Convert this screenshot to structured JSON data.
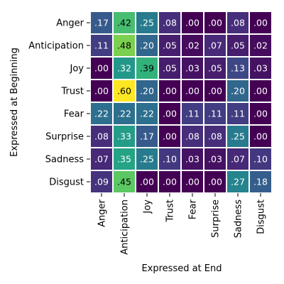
{
  "chart_data": {
    "type": "heatmap",
    "title": "",
    "xlabel": "Expressed at End",
    "ylabel": "Expressed at Beginning",
    "x_categories": [
      "Anger",
      "Anticipation",
      "Joy",
      "Trust",
      "Fear",
      "Surprise",
      "Sadness",
      "Disgust"
    ],
    "y_categories": [
      "Anger",
      "Anticipation",
      "Joy",
      "Trust",
      "Fear",
      "Surprise",
      "Sadness",
      "Disgust"
    ],
    "values": [
      [
        0.17,
        0.42,
        0.25,
        0.08,
        0.0,
        0.0,
        0.08,
        0.0
      ],
      [
        0.11,
        0.48,
        0.2,
        0.05,
        0.02,
        0.07,
        0.05,
        0.02
      ],
      [
        0.0,
        0.32,
        0.39,
        0.05,
        0.03,
        0.05,
        0.13,
        0.03
      ],
      [
        0.0,
        0.6,
        0.2,
        0.0,
        0.0,
        0.0,
        0.2,
        0.0
      ],
      [
        0.22,
        0.22,
        0.22,
        0.0,
        0.11,
        0.11,
        0.11,
        0.0
      ],
      [
        0.08,
        0.33,
        0.17,
        0.0,
        0.08,
        0.08,
        0.25,
        0.0
      ],
      [
        0.07,
        0.35,
        0.25,
        0.1,
        0.03,
        0.03,
        0.07,
        0.1
      ],
      [
        0.09,
        0.45,
        0.0,
        0.0,
        0.0,
        0.0,
        0.27,
        0.18
      ]
    ],
    "cell_labels": [
      [
        ".17",
        ".42",
        ".25",
        ".08",
        ".00",
        ".00",
        ".08",
        ".00"
      ],
      [
        ".11",
        ".48",
        ".20",
        ".05",
        ".02",
        ".07",
        ".05",
        ".02"
      ],
      [
        ".00",
        ".32",
        ".39",
        ".05",
        ".03",
        ".05",
        ".13",
        ".03"
      ],
      [
        ".00",
        ".60",
        ".20",
        ".00",
        ".00",
        ".00",
        ".20",
        ".00"
      ],
      [
        ".22",
        ".22",
        ".22",
        ".00",
        ".11",
        ".11",
        ".11",
        ".00"
      ],
      [
        ".08",
        ".33",
        ".17",
        ".00",
        ".08",
        ".08",
        ".25",
        ".00"
      ],
      [
        ".07",
        ".35",
        ".25",
        ".10",
        ".03",
        ".03",
        ".07",
        ".10"
      ],
      [
        ".09",
        ".45",
        ".00",
        ".00",
        ".00",
        ".00",
        ".27",
        ".18"
      ]
    ],
    "colormap": "viridis",
    "value_range": [
      0,
      0.6
    ],
    "grid": false,
    "legend": "none",
    "cell_border_color": "#ffffff"
  }
}
